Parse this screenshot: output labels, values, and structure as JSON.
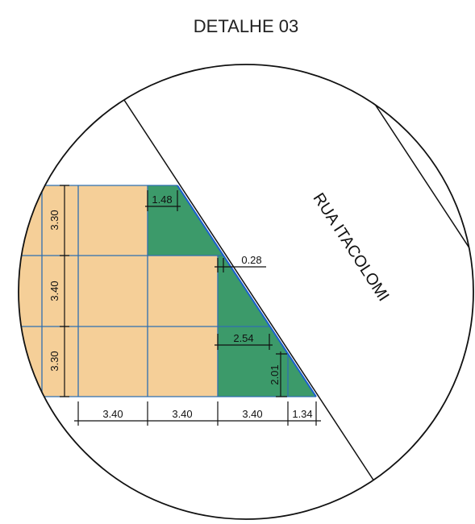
{
  "title": "DETALHE 03",
  "street": {
    "label": "RUA ITACOLOMI"
  },
  "dimensions": {
    "left": [
      "3.30",
      "3.40",
      "3.30"
    ],
    "bottom": [
      "3.40",
      "3.40",
      "3.40",
      "1.34"
    ],
    "top_offset": "1.48",
    "middle_offset": "0.28",
    "lower_offset": "2.54",
    "lower_height": "2.01"
  }
}
